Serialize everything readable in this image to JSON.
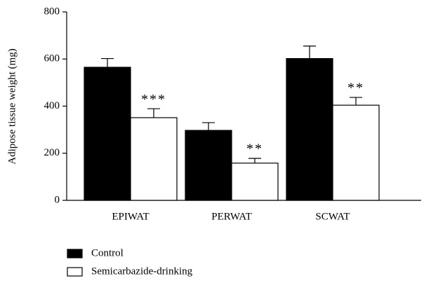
{
  "chart_data": {
    "type": "bar",
    "ylabel": "Adipose tissue weight (mg)",
    "categories": [
      "EPIWAT",
      "PERWAT",
      "SCWAT"
    ],
    "series": [
      {
        "name": "Control",
        "color": "#000000",
        "values": [
          565,
          297,
          602
        ],
        "errors": [
          37,
          33,
          53
        ]
      },
      {
        "name": "Semicarbazide-drinking",
        "color": "#ffffff",
        "values": [
          351,
          158,
          404
        ],
        "errors": [
          38,
          20,
          33
        ],
        "annotations": [
          "***",
          "**",
          "**"
        ]
      }
    ],
    "ylim": [
      0,
      800
    ],
    "yticks": [
      0,
      200,
      400,
      600,
      800
    ],
    "grid": false
  }
}
